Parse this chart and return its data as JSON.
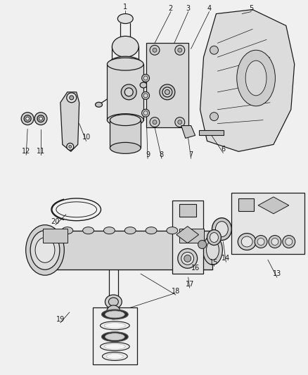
{
  "bg_color": "#f0f0f0",
  "fig_width": 4.39,
  "fig_height": 5.33,
  "line_color": "#1a1a1a",
  "line_width": 0.9
}
